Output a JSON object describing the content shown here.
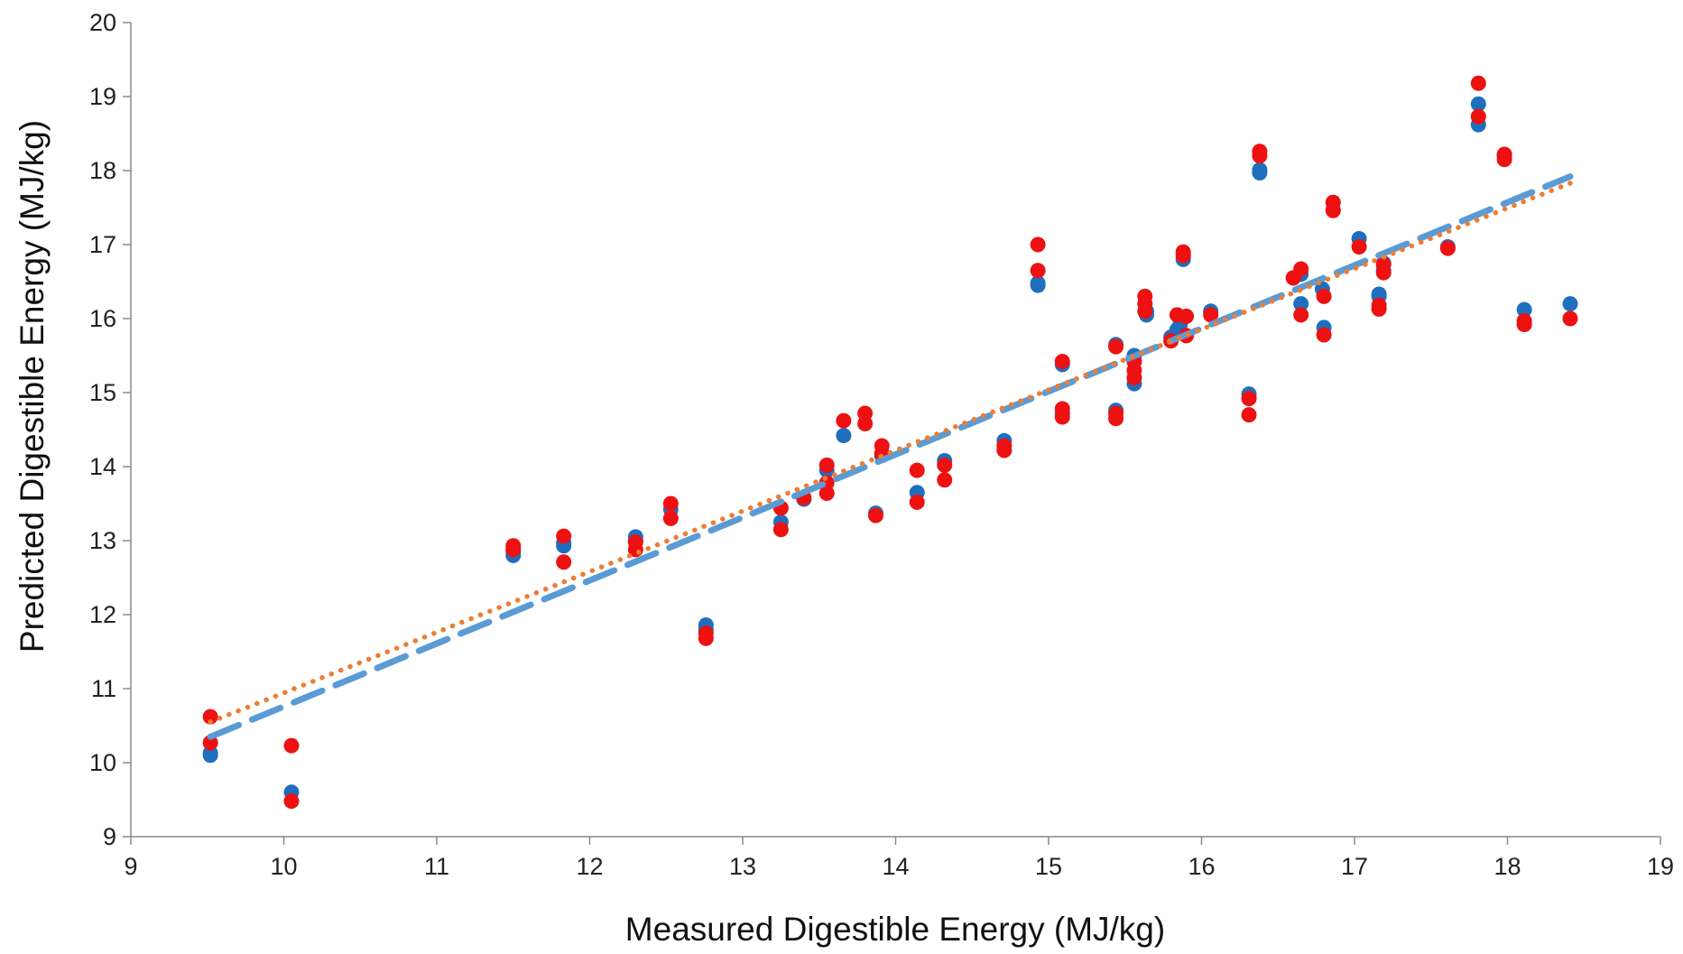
{
  "chart_data": {
    "type": "scatter",
    "title": "",
    "xlabel": "Measured Digestible Energy (MJ/kg)",
    "ylabel": "Predicted Digestible Energy (MJ/kg)",
    "xlim": [
      9,
      19
    ],
    "ylim": [
      9,
      20
    ],
    "xticks": [
      "9",
      "10",
      "11",
      "12",
      "13",
      "14",
      "15",
      "16",
      "17",
      "18",
      "19"
    ],
    "yticks": [
      "9",
      "10",
      "11",
      "12",
      "13",
      "14",
      "15",
      "16",
      "17",
      "18",
      "19",
      "20"
    ],
    "grid": false,
    "legend": "none",
    "series": [
      {
        "color": "#1f6fbf",
        "marker": "circle",
        "points": [
          [
            9.52,
            10.1
          ],
          [
            9.52,
            10.13
          ],
          [
            10.05,
            9.6
          ],
          [
            11.5,
            12.8
          ],
          [
            11.5,
            12.85
          ],
          [
            11.83,
            12.93
          ],
          [
            11.83,
            12.97
          ],
          [
            12.3,
            13.05
          ],
          [
            12.3,
            13.0
          ],
          [
            12.53,
            13.42
          ],
          [
            12.76,
            11.86
          ],
          [
            12.76,
            11.8
          ],
          [
            13.25,
            13.25
          ],
          [
            13.4,
            13.56
          ],
          [
            13.55,
            13.95
          ],
          [
            13.66,
            14.42
          ],
          [
            13.87,
            13.37
          ],
          [
            13.91,
            14.15
          ],
          [
            14.14,
            13.65
          ],
          [
            14.32,
            14.08
          ],
          [
            14.71,
            14.35
          ],
          [
            14.93,
            16.48
          ],
          [
            14.93,
            16.45
          ],
          [
            15.09,
            14.72
          ],
          [
            15.09,
            15.38
          ],
          [
            15.44,
            14.76
          ],
          [
            15.44,
            15.65
          ],
          [
            15.56,
            15.12
          ],
          [
            15.56,
            15.5
          ],
          [
            15.64,
            16.05
          ],
          [
            15.64,
            16.1
          ],
          [
            15.8,
            15.75
          ],
          [
            15.84,
            15.85
          ],
          [
            15.86,
            15.92
          ],
          [
            15.88,
            16.8
          ],
          [
            16.06,
            16.1
          ],
          [
            16.31,
            14.98
          ],
          [
            16.38,
            17.97
          ],
          [
            16.38,
            18.01
          ],
          [
            16.6,
            16.55
          ],
          [
            16.65,
            16.2
          ],
          [
            16.65,
            16.6
          ],
          [
            16.79,
            16.4
          ],
          [
            16.8,
            15.88
          ],
          [
            16.86,
            17.47
          ],
          [
            17.03,
            17.08
          ],
          [
            17.16,
            16.33
          ],
          [
            17.16,
            16.3
          ],
          [
            17.19,
            16.75
          ],
          [
            17.19,
            16.65
          ],
          [
            17.61,
            16.97
          ],
          [
            17.81,
            18.9
          ],
          [
            17.81,
            18.62
          ],
          [
            17.98,
            18.2
          ],
          [
            18.11,
            16.12
          ],
          [
            18.41,
            16.2
          ]
        ]
      },
      {
        "color": "#ee1111",
        "marker": "circle",
        "points": [
          [
            9.52,
            10.62
          ],
          [
            9.52,
            10.27
          ],
          [
            10.05,
            10.23
          ],
          [
            10.05,
            9.48
          ],
          [
            11.5,
            12.93
          ],
          [
            11.5,
            12.88
          ],
          [
            11.83,
            13.06
          ],
          [
            11.83,
            12.71
          ],
          [
            12.3,
            12.98
          ],
          [
            12.3,
            12.88
          ],
          [
            12.53,
            13.5
          ],
          [
            12.53,
            13.3
          ],
          [
            12.76,
            11.75
          ],
          [
            12.76,
            11.68
          ],
          [
            13.25,
            13.44
          ],
          [
            13.25,
            13.15
          ],
          [
            13.4,
            13.58
          ],
          [
            13.55,
            14.02
          ],
          [
            13.55,
            13.78
          ],
          [
            13.55,
            13.64
          ],
          [
            13.66,
            14.62
          ],
          [
            13.8,
            14.72
          ],
          [
            13.8,
            14.58
          ],
          [
            13.87,
            13.34
          ],
          [
            13.91,
            14.28
          ],
          [
            13.91,
            14.18
          ],
          [
            14.14,
            13.95
          ],
          [
            14.14,
            13.52
          ],
          [
            14.32,
            14.02
          ],
          [
            14.32,
            13.82
          ],
          [
            14.71,
            14.28
          ],
          [
            14.71,
            14.22
          ],
          [
            14.93,
            17.0
          ],
          [
            14.93,
            16.65
          ],
          [
            15.09,
            15.42
          ],
          [
            15.09,
            14.78
          ],
          [
            15.09,
            14.67
          ],
          [
            15.44,
            15.62
          ],
          [
            15.44,
            14.72
          ],
          [
            15.44,
            14.65
          ],
          [
            15.56,
            15.42
          ],
          [
            15.56,
            15.3
          ],
          [
            15.56,
            15.2
          ],
          [
            15.63,
            16.3
          ],
          [
            15.63,
            16.2
          ],
          [
            15.63,
            16.1
          ],
          [
            15.8,
            15.7
          ],
          [
            15.84,
            16.05
          ],
          [
            15.88,
            16.9
          ],
          [
            15.88,
            16.85
          ],
          [
            15.9,
            16.03
          ],
          [
            15.9,
            15.77
          ],
          [
            16.06,
            16.05
          ],
          [
            16.31,
            14.92
          ],
          [
            16.31,
            14.7
          ],
          [
            16.38,
            18.26
          ],
          [
            16.38,
            18.2
          ],
          [
            16.6,
            16.55
          ],
          [
            16.65,
            16.67
          ],
          [
            16.65,
            16.05
          ],
          [
            16.8,
            16.3
          ],
          [
            16.8,
            15.78
          ],
          [
            16.86,
            17.57
          ],
          [
            16.86,
            17.46
          ],
          [
            17.03,
            16.97
          ],
          [
            17.16,
            16.18
          ],
          [
            17.16,
            16.13
          ],
          [
            17.19,
            16.73
          ],
          [
            17.19,
            16.62
          ],
          [
            17.61,
            16.95
          ],
          [
            17.81,
            19.18
          ],
          [
            17.81,
            18.73
          ],
          [
            17.98,
            18.22
          ],
          [
            17.98,
            18.15
          ],
          [
            18.11,
            15.97
          ],
          [
            18.11,
            15.92
          ],
          [
            18.41,
            16.0
          ]
        ]
      }
    ],
    "trendlines": [
      {
        "style": "dashed",
        "color": "#5b9bd5",
        "x": [
          9.52,
          18.41
        ],
        "y": [
          10.35,
          17.92
        ]
      },
      {
        "style": "dotted",
        "color": "#ed7d31",
        "x": [
          9.52,
          18.41
        ],
        "y": [
          10.55,
          17.83
        ]
      }
    ]
  }
}
